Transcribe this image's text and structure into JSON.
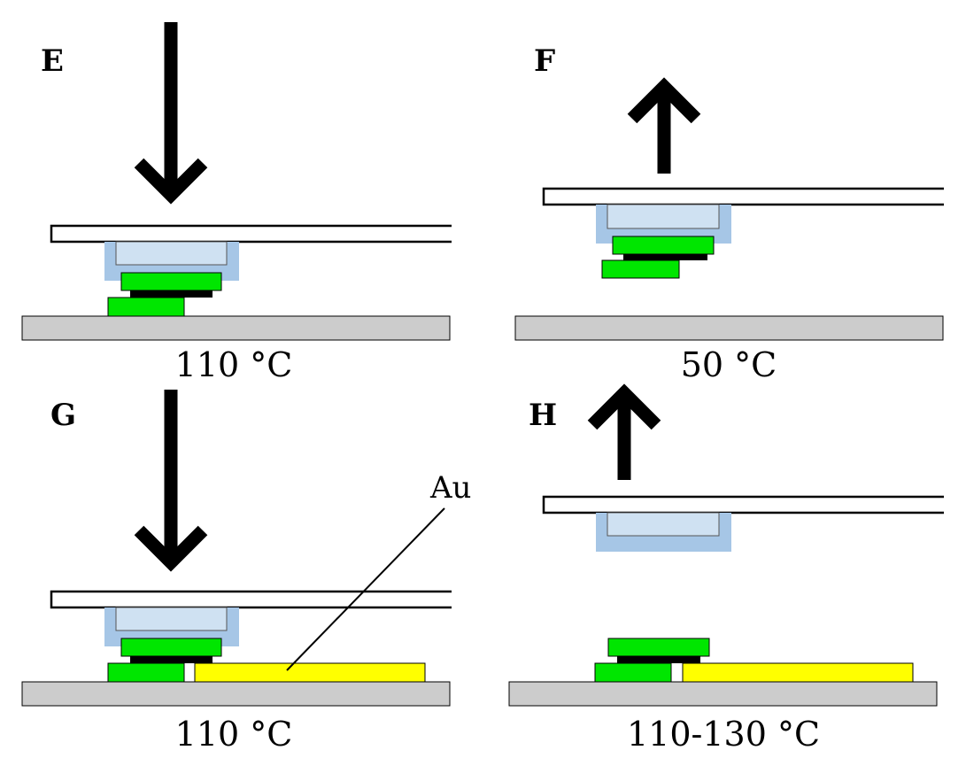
{
  "colors": {
    "arrow": "#000000",
    "glass_slide": "#ffffff",
    "stamp_outer": "#a6c6e6",
    "stamp_inner": "#cfe1f2",
    "flake": "#00e600",
    "spacer": "#000000",
    "substrate": "#cccccc",
    "gold": "#ffff00"
  },
  "panels": [
    {
      "id": "E",
      "label": "E",
      "temperature": "110 °C",
      "arrow": "down"
    },
    {
      "id": "F",
      "label": "F",
      "temperature": "50 °C",
      "arrow": "up"
    },
    {
      "id": "G",
      "label": "G",
      "temperature": "110 °C",
      "arrow": "down",
      "annotation": "Au"
    },
    {
      "id": "H",
      "label": "H",
      "temperature": "110-130 °C",
      "arrow": "up"
    }
  ]
}
